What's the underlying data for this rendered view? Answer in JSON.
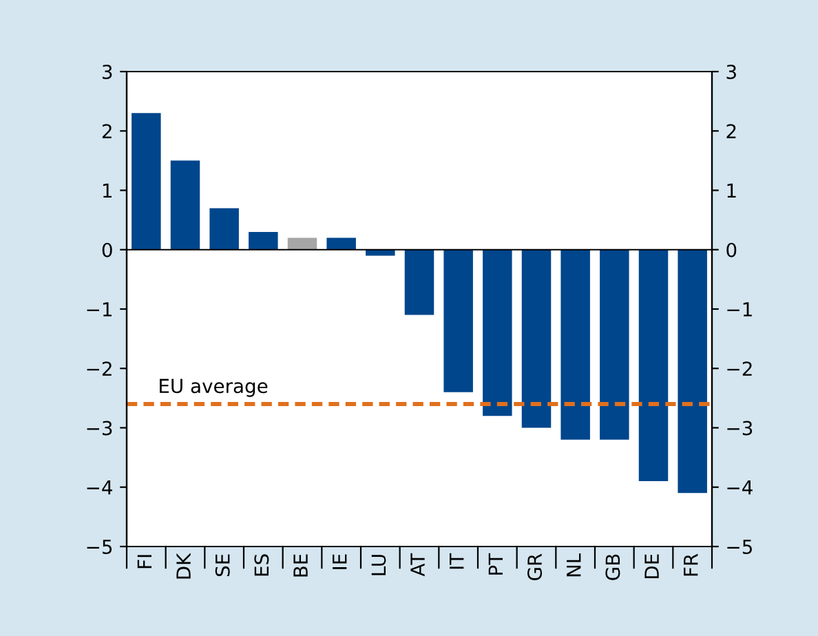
{
  "chart_data": {
    "type": "bar",
    "categories": [
      "FI",
      "DK",
      "SE",
      "ES",
      "BE",
      "IE",
      "LU",
      "AT",
      "IT",
      "PT",
      "GR",
      "NL",
      "GB",
      "DE",
      "FR"
    ],
    "values": [
      2.3,
      1.5,
      0.7,
      0.3,
      0.2,
      0.2,
      -0.1,
      -1.1,
      -2.4,
      -2.8,
      -3.0,
      -3.2,
      -3.2,
      -3.9,
      -4.1
    ],
    "colors": [
      "#00468c",
      "#00468c",
      "#00468c",
      "#00468c",
      "#a6a6a6",
      "#00468c",
      "#00468c",
      "#00468c",
      "#00468c",
      "#00468c",
      "#00468c",
      "#00468c",
      "#00468c",
      "#00468c",
      "#00468c"
    ],
    "ylim": [
      -5,
      3
    ],
    "yticks": [
      -5,
      -4,
      -3,
      -2,
      -1,
      0,
      1,
      2,
      3
    ],
    "y2lim": [
      -5,
      3
    ],
    "y2ticks": [
      -5,
      -4,
      -3,
      -2,
      -1,
      0,
      1,
      2,
      3
    ],
    "ref_lines": [
      {
        "axis": "y",
        "value": -2.6,
        "label": "EU average",
        "color": "#e0701e",
        "line_style": "dashed"
      }
    ],
    "legend": false
  }
}
